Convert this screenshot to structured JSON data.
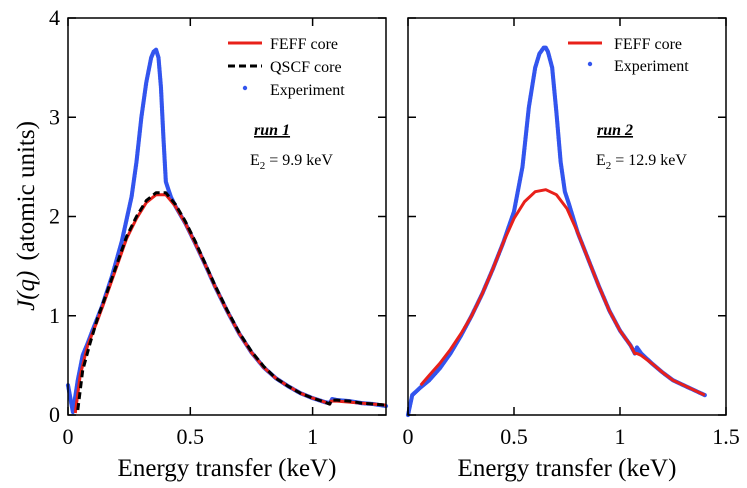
{
  "chart_data": {
    "type": "line",
    "ylabel_main": "J(q)",
    "ylabel_units": "(atomic units)",
    "shared_ylim": [
      0,
      4
    ],
    "y_ticks": [
      "0",
      "1",
      "2",
      "3",
      "4"
    ],
    "panels": [
      {
        "id": "run1",
        "xlabel": "Energy transfer (keV)",
        "xlim": [
          0,
          1.3
        ],
        "x_ticks": [
          {
            "value": 0,
            "label": "0"
          },
          {
            "value": 0.5,
            "label": "0.5"
          },
          {
            "value": 1.0,
            "label": "1"
          }
        ],
        "run_label": "run 1",
        "energy_label_prefix": "E",
        "energy_label_sub": "2",
        "energy_label_value": " = 9.9 keV",
        "legend": [
          {
            "key": "feff",
            "label": "FEFF core"
          },
          {
            "key": "qscf",
            "label": "QSCF core"
          },
          {
            "key": "exp",
            "label": "Experiment"
          }
        ],
        "series": [
          {
            "key": "feff",
            "name": "FEFF core",
            "color": "#e8201a",
            "x": [
              0.03,
              0.05,
              0.08,
              0.12,
              0.16,
              0.2,
              0.24,
              0.28,
              0.32,
              0.36,
              0.4,
              0.44,
              0.48,
              0.52,
              0.56,
              0.6,
              0.65,
              0.7,
              0.75,
              0.8,
              0.85,
              0.9,
              0.95,
              1.0,
              1.05,
              1.07,
              1.075,
              1.1,
              1.15,
              1.2,
              1.25,
              1.3
            ],
            "y": [
              0.02,
              0.4,
              0.7,
              0.95,
              1.22,
              1.5,
              1.78,
              1.98,
              2.14,
              2.22,
              2.22,
              2.1,
              1.93,
              1.73,
              1.52,
              1.3,
              1.05,
              0.82,
              0.63,
              0.48,
              0.37,
              0.29,
              0.22,
              0.17,
              0.13,
              0.11,
              0.14,
              0.14,
              0.13,
              0.12,
              0.11,
              0.1
            ]
          },
          {
            "key": "qscf",
            "name": "QSCF core",
            "color": "#000000",
            "x": [
              0.04,
              0.06,
              0.09,
              0.12,
              0.16,
              0.2,
              0.24,
              0.28,
              0.32,
              0.36,
              0.4,
              0.44,
              0.48,
              0.52,
              0.56,
              0.6,
              0.65,
              0.7,
              0.75,
              0.8,
              0.85,
              0.9,
              0.95,
              1.0,
              1.05,
              1.07,
              1.075,
              1.1,
              1.15,
              1.2,
              1.25,
              1.3
            ],
            "y": [
              0.05,
              0.45,
              0.72,
              0.97,
              1.24,
              1.52,
              1.8,
              2.0,
              2.16,
              2.24,
              2.24,
              2.12,
              1.95,
              1.75,
              1.53,
              1.31,
              1.06,
              0.83,
              0.64,
              0.49,
              0.37,
              0.29,
              0.22,
              0.17,
              0.13,
              0.11,
              0.15,
              0.15,
              0.14,
              0.12,
              0.11,
              0.1
            ]
          },
          {
            "key": "exp",
            "name": "Experiment",
            "color": "#3355ee",
            "x": [
              0.0,
              0.02,
              0.04,
              0.06,
              0.08,
              0.1,
              0.14,
              0.18,
              0.22,
              0.26,
              0.28,
              0.3,
              0.32,
              0.34,
              0.35,
              0.36,
              0.37,
              0.38,
              0.39,
              0.4,
              0.42,
              0.44,
              0.48,
              0.52,
              0.56,
              0.6,
              0.65,
              0.7,
              0.75,
              0.8,
              0.85,
              0.9,
              0.95,
              1.0,
              1.05,
              1.07,
              1.08,
              1.1,
              1.15,
              1.2,
              1.25,
              1.3
            ],
            "y": [
              0.3,
              0.03,
              0.35,
              0.6,
              0.72,
              0.85,
              1.1,
              1.4,
              1.75,
              2.2,
              2.55,
              3.0,
              3.35,
              3.6,
              3.66,
              3.68,
              3.6,
              3.3,
              2.8,
              2.35,
              2.2,
              2.1,
              1.93,
              1.73,
              1.52,
              1.3,
              1.05,
              0.82,
              0.63,
              0.48,
              0.37,
              0.29,
              0.22,
              0.17,
              0.13,
              0.12,
              0.16,
              0.15,
              0.14,
              0.12,
              0.11,
              0.09
            ]
          }
        ]
      },
      {
        "id": "run2",
        "xlabel": "Energy transfer (keV)",
        "xlim": [
          0,
          1.5
        ],
        "x_ticks": [
          {
            "value": 0,
            "label": "0"
          },
          {
            "value": 0.5,
            "label": "0.5"
          },
          {
            "value": 1.0,
            "label": "1"
          },
          {
            "value": 1.5,
            "label": "1.5"
          }
        ],
        "run_label": "run 2",
        "energy_label_prefix": "E",
        "energy_label_sub": "2",
        "energy_label_value": " = 12.9 keV",
        "legend": [
          {
            "key": "feff",
            "label": "FEFF core"
          },
          {
            "key": "exp",
            "label": "Experiment"
          }
        ],
        "series": [
          {
            "key": "feff",
            "name": "FEFF core",
            "color": "#e8201a",
            "x": [
              0.06,
              0.1,
              0.15,
              0.2,
              0.25,
              0.3,
              0.35,
              0.4,
              0.45,
              0.5,
              0.55,
              0.6,
              0.65,
              0.7,
              0.75,
              0.8,
              0.85,
              0.9,
              0.95,
              1.0,
              1.05,
              1.07,
              1.08,
              1.1,
              1.15,
              1.2,
              1.25,
              1.3,
              1.35,
              1.4
            ],
            "y": [
              0.3,
              0.4,
              0.52,
              0.66,
              0.82,
              1.0,
              1.22,
              1.47,
              1.74,
              1.98,
              2.15,
              2.25,
              2.27,
              2.22,
              2.08,
              1.84,
              1.57,
              1.3,
              1.05,
              0.85,
              0.7,
              0.62,
              0.62,
              0.6,
              0.52,
              0.43,
              0.35,
              0.3,
              0.25,
              0.2
            ]
          },
          {
            "key": "exp",
            "name": "Experiment",
            "color": "#3355ee",
            "x": [
              0.0,
              0.02,
              0.04,
              0.06,
              0.1,
              0.15,
              0.2,
              0.25,
              0.3,
              0.35,
              0.4,
              0.45,
              0.5,
              0.54,
              0.57,
              0.6,
              0.62,
              0.64,
              0.65,
              0.66,
              0.68,
              0.7,
              0.72,
              0.74,
              0.76,
              0.8,
              0.85,
              0.9,
              0.95,
              1.0,
              1.05,
              1.07,
              1.08,
              1.1,
              1.15,
              1.2,
              1.25,
              1.3,
              1.35,
              1.4
            ],
            "y": [
              0.0,
              0.2,
              0.24,
              0.28,
              0.35,
              0.47,
              0.62,
              0.8,
              1.0,
              1.22,
              1.47,
              1.74,
              2.05,
              2.5,
              3.1,
              3.5,
              3.64,
              3.7,
              3.7,
              3.66,
              3.5,
              3.05,
              2.55,
              2.25,
              2.12,
              1.84,
              1.57,
              1.3,
              1.05,
              0.85,
              0.7,
              0.62,
              0.68,
              0.62,
              0.52,
              0.43,
              0.35,
              0.3,
              0.25,
              0.2
            ]
          }
        ]
      }
    ]
  }
}
